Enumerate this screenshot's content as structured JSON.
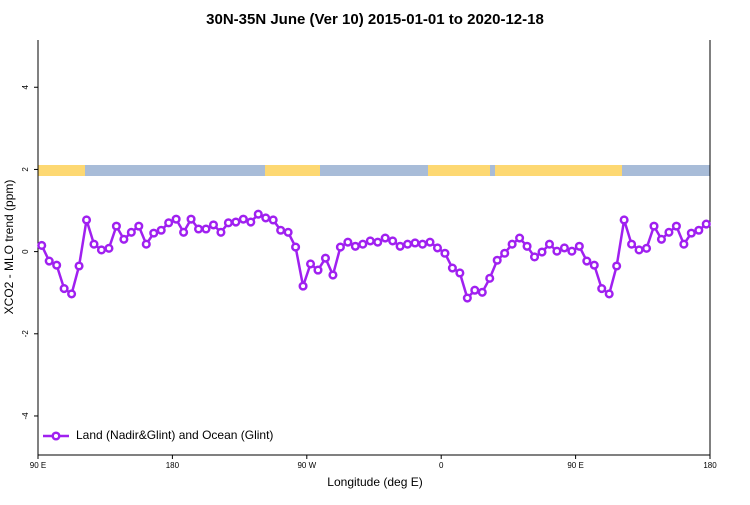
{
  "chart_data": {
    "type": "line",
    "title": "30N-35N June (Ver 10)   2015-01-01 to 2020-12-18",
    "x_label": "Longitude (deg E)",
    "y_label": "XCO2 - MLO trend (ppm)",
    "x": [
      92.5,
      97.5,
      102.5,
      107.5,
      112.5,
      117.5,
      122.5,
      127.5,
      132.5,
      137.5,
      142.5,
      147.5,
      152.5,
      157.5,
      162.5,
      167.5,
      172.5,
      177.5,
      182.5,
      187.5,
      192.5,
      197.5,
      202.5,
      207.5,
      212.5,
      217.5,
      222.5,
      227.5,
      232.5,
      237.5,
      242.5,
      247.5,
      252.5,
      257.5,
      262.5,
      267.5,
      272.5,
      277.5,
      282.5,
      287.5,
      292.5,
      297.5,
      302.5,
      307.5,
      312.5,
      317.5,
      322.5,
      327.5,
      332.5,
      337.5,
      342.5,
      347.5,
      352.5,
      357.5,
      362.5,
      367.5,
      372.5,
      377.5,
      382.5,
      387.5,
      392.5,
      397.5,
      402.5,
      407.5,
      412.5,
      417.5,
      422.5,
      427.5,
      432.5,
      437.5,
      442.5,
      447.5,
      452.5,
      457.5,
      462.5,
      467.5,
      472.5,
      477.5,
      482.5,
      487.5,
      492.5,
      497.5,
      502.5,
      507.5,
      512.5,
      517.5,
      522.5,
      527.5,
      532.5,
      537.5
    ],
    "series": [
      {
        "name": "Land (Nadir&Glint) and Ocean (Glint)",
        "color": "#a020f0",
        "values": [
          0.15,
          -0.23,
          -0.33,
          -0.9,
          -1.03,
          -0.35,
          0.77,
          0.18,
          0.04,
          0.08,
          0.62,
          0.3,
          0.47,
          0.62,
          0.18,
          0.45,
          0.52,
          0.7,
          0.79,
          0.47,
          0.79,
          0.55,
          0.55,
          0.65,
          0.47,
          0.7,
          0.72,
          0.79,
          0.72,
          0.91,
          0.82,
          0.77,
          0.52,
          0.47,
          0.11,
          -0.84,
          -0.3,
          -0.45,
          -0.16,
          -0.57,
          0.11,
          0.23,
          0.13,
          0.18,
          0.26,
          0.23,
          0.33,
          0.26,
          0.13,
          0.18,
          0.21,
          0.18,
          0.23,
          0.09,
          -0.04,
          -0.4,
          -0.52,
          -1.13,
          -0.94,
          -0.99,
          -0.65,
          -0.21,
          -0.04,
          0.18,
          0.33,
          0.13,
          -0.13,
          -0.01,
          0.18,
          0.01,
          0.09,
          0.01,
          0.13,
          -0.23,
          -0.33,
          -0.9,
          -1.03,
          -0.35,
          0.77,
          0.18,
          0.04,
          0.08,
          0.62,
          0.3,
          0.47,
          0.62,
          0.18,
          0.45,
          0.52,
          0.67
        ]
      }
    ],
    "xlim": [
      90,
      540
    ],
    "xticks": [
      {
        "value": 90,
        "label": "90 E"
      },
      180,
      {
        "value": 270,
        "label": "90 W"
      },
      {
        "value": 360,
        "label": "0"
      },
      {
        "value": 450,
        "label": "90 E"
      },
      {
        "value": 540,
        "label": "180"
      }
    ],
    "ylim": [
      -4.95,
      5.15
    ],
    "yticks": [
      -4,
      -2,
      0,
      2,
      4
    ],
    "legend": "bottom-left"
  }
}
